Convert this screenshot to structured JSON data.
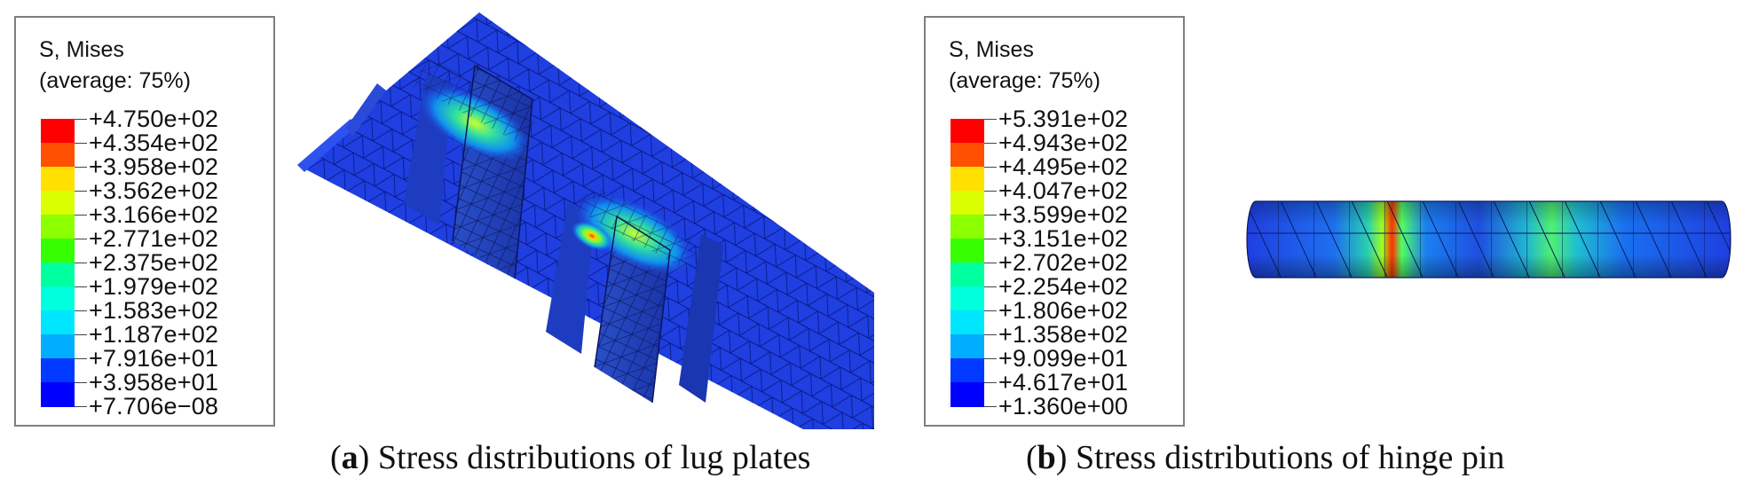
{
  "colors": {
    "scale": [
      "#0000ff",
      "#0039ff",
      "#0073ff",
      "#00adff",
      "#00e6ff",
      "#00ffdc",
      "#00ff9f",
      "#00ff5a",
      "#35ff00",
      "#8cff00",
      "#d9ff00",
      "#ffe000",
      "#ff9e00",
      "#ff4f00",
      "#ff0000"
    ],
    "mesh_base": "#1f3fe0"
  },
  "legend_a": {
    "title_line1": "S, Mises",
    "title_line2": "(average: 75%)",
    "ticks": [
      "+4.750e+02",
      "+4.354e+02",
      "+3.958e+02",
      "+3.562e+02",
      "+3.166e+02",
      "+2.771e+02",
      "+2.375e+02",
      "+1.979e+02",
      "+1.583e+02",
      "+1.187e+02",
      "+7.916e+01",
      "+3.958e+01",
      "+7.706e−08"
    ]
  },
  "legend_b": {
    "title_line1": "S, Mises",
    "title_line2": "(average: 75%)",
    "ticks": [
      "+5.391e+02",
      "+4.943e+02",
      "+4.495e+02",
      "+4.047e+02",
      "+3.599e+02",
      "+3.151e+02",
      "+2.702e+02",
      "+2.254e+02",
      "+1.806e+02",
      "+1.358e+02",
      "+9.099e+01",
      "+4.617e+01",
      "+1.360e+00"
    ]
  },
  "caption_a": {
    "letter": "a",
    "text": " Stress distributions of lug plates"
  },
  "caption_b": {
    "letter": "b",
    "text": " Stress distributions of hinge pin"
  }
}
